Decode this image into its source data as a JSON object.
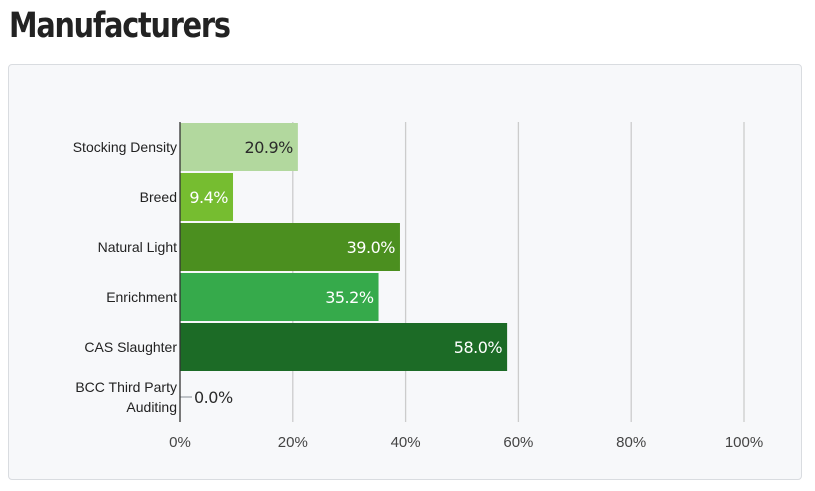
{
  "page": {
    "title": "Manufacturers"
  },
  "chart_data": {
    "type": "bar",
    "orientation": "horizontal",
    "categories": [
      "Stocking Density",
      "Breed",
      "Natural Light",
      "Enrichment",
      "CAS Slaughter",
      "BCC Third Party Auditing"
    ],
    "values": [
      20.9,
      9.4,
      39.0,
      35.2,
      58.0,
      0.0
    ],
    "value_labels": [
      "20.9%",
      "9.4%",
      "39.0%",
      "35.2%",
      "58.0%",
      "0.0%"
    ],
    "bar_colors": [
      "#b2d89e",
      "#76bd30",
      "#4b8f1f",
      "#36aa4b",
      "#1c6b26",
      "#9aa0a6"
    ],
    "label_colors": [
      "#2b2b2b",
      "#ffffff",
      "#ffffff",
      "#ffffff",
      "#ffffff",
      "#2b2b2b"
    ],
    "xlim": [
      0,
      100
    ],
    "xticks": [
      0,
      20,
      40,
      60,
      80,
      100
    ],
    "xtick_labels": [
      "0%",
      "20%",
      "40%",
      "60%",
      "80%",
      "100%"
    ],
    "grid": "vertical",
    "legend": "none",
    "title": "",
    "xlabel": "",
    "ylabel": ""
  }
}
